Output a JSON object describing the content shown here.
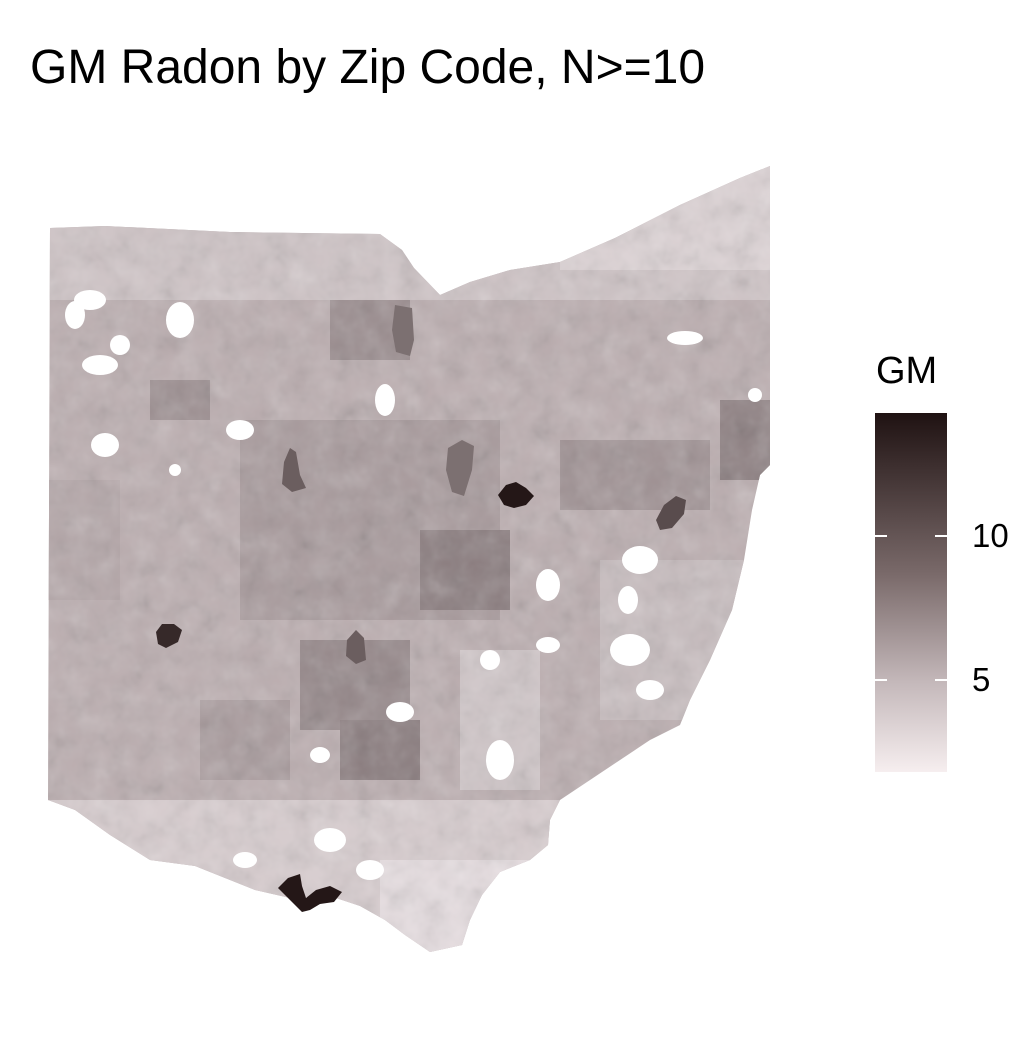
{
  "title": "GM Radon by Zip Code, N>=10",
  "legend": {
    "title": "GM",
    "ticks": [
      {
        "label": "10",
        "value": 10
      },
      {
        "label": "5",
        "value": 5
      }
    ],
    "value_min": 1.8,
    "value_max": 14.3,
    "colors": {
      "low": "#f6eeef",
      "mid": "#b9adaf",
      "high": "#1f1212"
    }
  },
  "regions": [
    {
      "name": "north-central-zip",
      "value": 9
    },
    {
      "name": "central-east-hotspot",
      "value": 14
    },
    {
      "name": "east-hotspot",
      "value": 11
    },
    {
      "name": "west-hotspot",
      "value": 13
    },
    {
      "name": "central-west-hotspot",
      "value": 10
    },
    {
      "name": "central-zip",
      "value": 9
    },
    {
      "name": "south-central-zip",
      "value": 10
    },
    {
      "name": "southwest-hotspot",
      "value": 14
    }
  ]
}
